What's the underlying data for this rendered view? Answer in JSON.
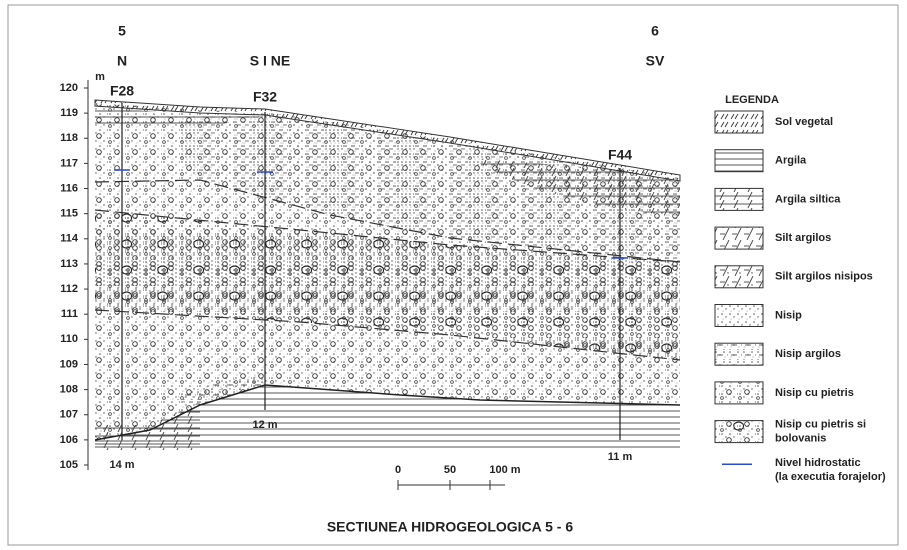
{
  "profile": {
    "points": [
      {
        "number": "5",
        "direction": "N"
      },
      {
        "direction": "S I NE"
      },
      {
        "number": "6",
        "direction": "SV"
      }
    ]
  },
  "axis": {
    "unit": "m",
    "labels": [
      "120",
      "119",
      "118",
      "117",
      "116",
      "115",
      "114",
      "113",
      "112",
      "111",
      "110",
      "109",
      "108",
      "107",
      "106",
      "105"
    ]
  },
  "wells": [
    {
      "name": "F28",
      "depth": "14 m"
    },
    {
      "name": "F32",
      "depth": "12 m"
    },
    {
      "name": "F44",
      "depth": "11 m"
    }
  ],
  "scale_bar": {
    "labels": [
      "0",
      "50",
      "100 m"
    ]
  },
  "legend": {
    "title": "LEGENDA",
    "items": [
      {
        "lines": [
          "Sol vegetal"
        ]
      },
      {
        "lines": [
          "Argila"
        ]
      },
      {
        "lines": [
          "Argila siltica"
        ]
      },
      {
        "lines": [
          "Silt argilos"
        ]
      },
      {
        "lines": [
          "Silt argilos nisipos"
        ]
      },
      {
        "lines": [
          "Nisip"
        ]
      },
      {
        "lines": [
          "Nisip argilos"
        ]
      },
      {
        "lines": [
          "Nisip cu pietris"
        ]
      },
      {
        "lines": [
          "Nisip cu pietris si",
          "bolovanis"
        ]
      },
      {
        "lines": [
          "Nivel hidrostatic",
          "(la executia forajelor)"
        ]
      }
    ]
  },
  "title": "SECTIUNEA HIDROGEOLOGICA 5 - 6"
}
